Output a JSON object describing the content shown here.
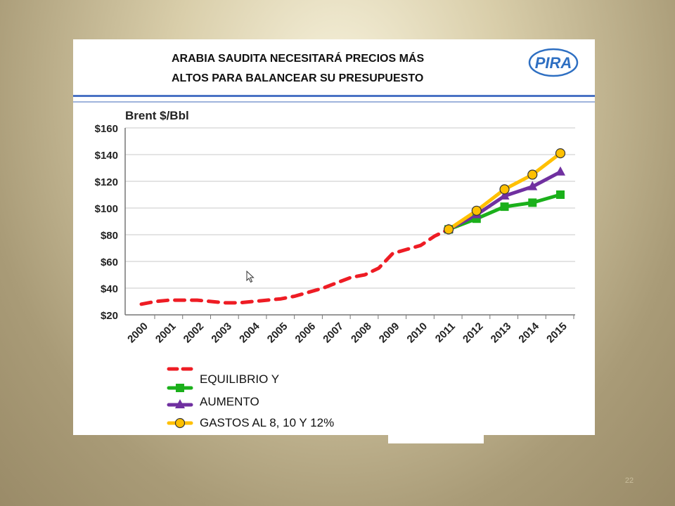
{
  "slide": {
    "title_lines": [
      "ARABIA SAUDITA NECESITARÁ PRECIOS MÁS",
      "ALTOS PARA BALANCEAR SU PRESUPUESTO"
    ],
    "logo_text": "PIRA",
    "slide_number": "22"
  },
  "legend": {
    "labels": [
      "EQUILIBRIO Y",
      "AUMENTO",
      "GASTOS AL 8, 10 Y 12%"
    ]
  },
  "chart_data": {
    "type": "line",
    "ylabel": "Brent $/Bbl",
    "xlabel": "",
    "categories": [
      "2000",
      "2001",
      "2002",
      "2003",
      "2004",
      "2005",
      "2006",
      "2007",
      "2008",
      "2009",
      "2010",
      "2011",
      "2012",
      "2013",
      "2014",
      "2015"
    ],
    "ylim": [
      20,
      160
    ],
    "ytick_labels": [
      "$20",
      "$40",
      "$60",
      "$80",
      "$100",
      "$120",
      "$140",
      "$160"
    ],
    "grid": true,
    "legend_placement": "bottom-left",
    "series": [
      {
        "color": "#ee1c24",
        "style": "dashed",
        "marker": "none",
        "points": [
          [
            2000,
            28
          ],
          [
            2000.5,
            30
          ],
          [
            2001,
            31
          ],
          [
            2001.5,
            31
          ],
          [
            2002,
            31
          ],
          [
            2002.5,
            30
          ],
          [
            2003,
            29
          ],
          [
            2003.5,
            29
          ],
          [
            2004,
            30
          ],
          [
            2004.5,
            31
          ],
          [
            2005,
            32
          ],
          [
            2005.5,
            34
          ],
          [
            2006,
            37
          ],
          [
            2006.5,
            40
          ],
          [
            2007,
            44
          ],
          [
            2007.5,
            48
          ],
          [
            2008,
            50
          ],
          [
            2008.5,
            55
          ],
          [
            2009,
            66
          ],
          [
            2009.5,
            69
          ],
          [
            2010,
            72
          ],
          [
            2010.5,
            79
          ],
          [
            2011,
            84
          ]
        ]
      },
      {
        "color": "#1bb01b",
        "style": "solid",
        "marker": "square",
        "points": [
          [
            2011,
            84
          ],
          [
            2012,
            92
          ],
          [
            2013,
            101
          ],
          [
            2014,
            104
          ],
          [
            2015,
            110
          ]
        ]
      },
      {
        "color": "#7030a0",
        "style": "solid",
        "marker": "triangle",
        "points": [
          [
            2011,
            84
          ],
          [
            2012,
            95
          ],
          [
            2013,
            109
          ],
          [
            2014,
            116
          ],
          [
            2015,
            127
          ]
        ]
      },
      {
        "color": "#ffc000",
        "style": "solid",
        "marker": "circle",
        "points": [
          [
            2011,
            84
          ],
          [
            2012,
            98
          ],
          [
            2013,
            114
          ],
          [
            2014,
            125
          ],
          [
            2015,
            141
          ]
        ]
      }
    ]
  }
}
